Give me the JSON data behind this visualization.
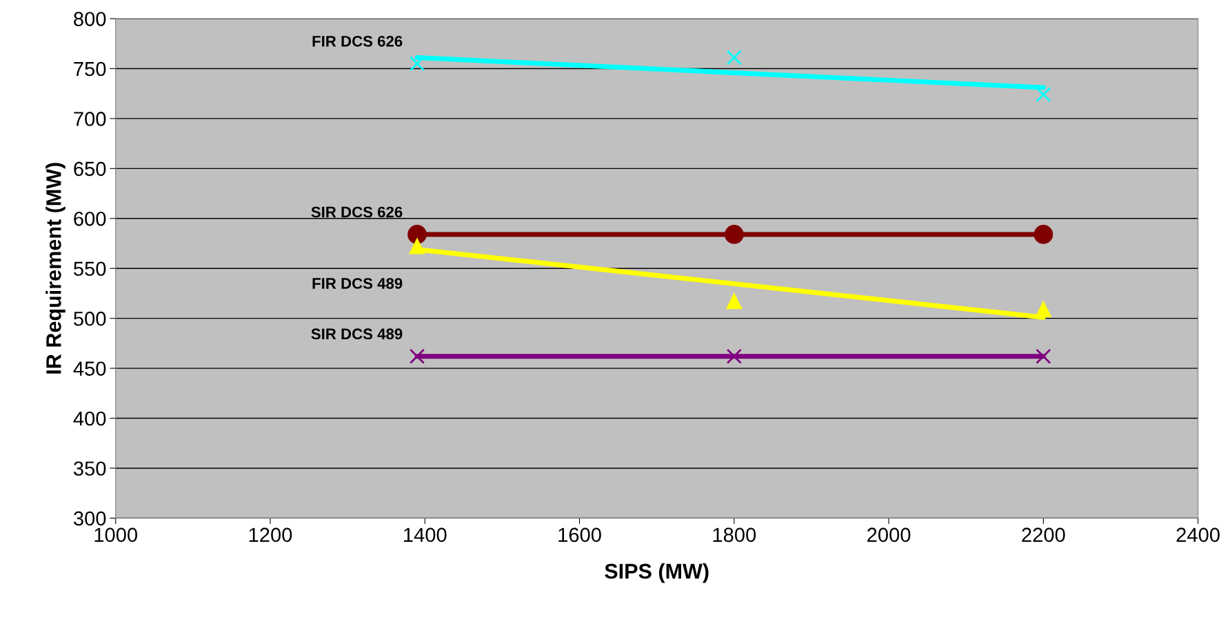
{
  "chart_data": {
    "type": "line",
    "xlabel": "SIPS (MW)",
    "ylabel": "IR Requirement (MW)",
    "xlim": [
      1000,
      2400
    ],
    "xticks": [
      1000,
      1200,
      1400,
      1600,
      1800,
      2000,
      2200,
      2400
    ],
    "ylim": [
      300,
      800
    ],
    "yticks": [
      300,
      350,
      400,
      450,
      500,
      550,
      600,
      650,
      700,
      750,
      800
    ],
    "grid": "y",
    "legend": false,
    "series": [
      {
        "name": "FIR DCS 626",
        "type": "scatter",
        "marker": "cross",
        "color": "#00ffff",
        "x": [
          1390,
          1800,
          2200
        ],
        "values": [
          755,
          761,
          724
        ]
      },
      {
        "color": "#00ffff",
        "marker": "none",
        "x": [
          1390,
          2200
        ],
        "values": [
          761,
          731
        ]
      },
      {
        "name": "SIR DCS 626",
        "marker": "circle",
        "color": "#800000",
        "x": [
          1390,
          1800,
          2200
        ],
        "values": [
          584,
          584,
          584
        ]
      },
      {
        "name": "FIR DCS 489",
        "type": "scatter",
        "marker": "triangle",
        "color": "#ffff00",
        "x": [
          1390,
          1800,
          2200
        ],
        "values": [
          572,
          517,
          509
        ]
      },
      {
        "color": "#ffff00",
        "marker": "none",
        "x": [
          1390,
          2200
        ],
        "values": [
          569,
          501
        ]
      },
      {
        "name": "SIR DCS 489",
        "marker": "cross",
        "color": "#800080",
        "x": [
          1390,
          1800,
          2200
        ],
        "values": [
          462,
          462,
          462
        ]
      }
    ]
  }
}
